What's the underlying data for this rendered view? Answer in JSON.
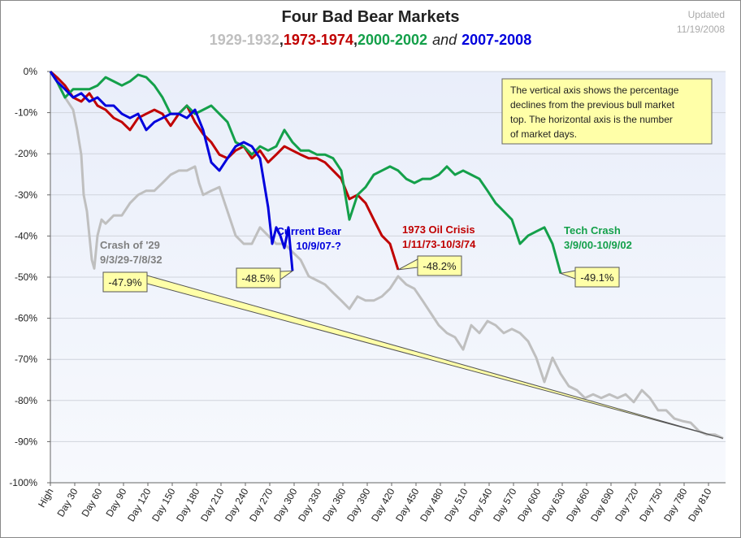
{
  "chart_data": {
    "type": "line",
    "title": "Four Bad Bear Markets",
    "subtitle_separators": [
      ",",
      ",",
      "and"
    ],
    "updated": [
      "Updated",
      "11/19/2008"
    ],
    "note": [
      "The vertical axis shows the percentage",
      "declines from the previous bull market",
      "top. The horizontal axis is the number",
      "of market days."
    ],
    "xlim": [
      0,
      831
    ],
    "ylim": [
      -100,
      0
    ],
    "grid": true,
    "xticks": [
      {
        "value": 0,
        "label": "High"
      },
      {
        "value": 30,
        "label": "Day 30"
      },
      {
        "value": 60,
        "label": "Day 60"
      },
      {
        "value": 90,
        "label": "Day 90"
      },
      {
        "value": 120,
        "label": "Day 120"
      },
      {
        "value": 150,
        "label": "Day 150"
      },
      {
        "value": 180,
        "label": "Day 180"
      },
      {
        "value": 210,
        "label": "Day 210"
      },
      {
        "value": 240,
        "label": "Day 240"
      },
      {
        "value": 270,
        "label": "Day 270"
      },
      {
        "value": 300,
        "label": "Day 300"
      },
      {
        "value": 330,
        "label": "Day 330"
      },
      {
        "value": 360,
        "label": "Day 360"
      },
      {
        "value": 390,
        "label": "Day 390"
      },
      {
        "value": 420,
        "label": "Day 420"
      },
      {
        "value": 450,
        "label": "Day 450"
      },
      {
        "value": 480,
        "label": "Day 480"
      },
      {
        "value": 510,
        "label": "Day 510"
      },
      {
        "value": 540,
        "label": "Day 540"
      },
      {
        "value": 570,
        "label": "Day 570"
      },
      {
        "value": 600,
        "label": "Day 600"
      },
      {
        "value": 630,
        "label": "Day 630"
      },
      {
        "value": 660,
        "label": "Day 660"
      },
      {
        "value": 690,
        "label": "Day 690"
      },
      {
        "value": 720,
        "label": "Day 720"
      },
      {
        "value": 750,
        "label": "Day 750"
      },
      {
        "value": 780,
        "label": "Day 780"
      },
      {
        "value": 810,
        "label": "Day 810"
      }
    ],
    "yticks": [
      {
        "value": 0,
        "label": "0%"
      },
      {
        "value": -10,
        "label": "-10%"
      },
      {
        "value": -20,
        "label": "-20%"
      },
      {
        "value": -30,
        "label": "-30%"
      },
      {
        "value": -40,
        "label": "-40%"
      },
      {
        "value": -50,
        "label": "-50%"
      },
      {
        "value": -60,
        "label": "-60%"
      },
      {
        "value": -70,
        "label": "-70%"
      },
      {
        "value": -80,
        "label": "-80%"
      },
      {
        "value": -90,
        "label": "-90%"
      },
      {
        "value": -100,
        "label": "-100%"
      }
    ],
    "series": [
      {
        "name": "1929-1932",
        "color": "#bfbfbf",
        "label": [
          "Crash of '29",
          "9/3/29-7/8/32"
        ],
        "label_color": "#808080",
        "callout": "-47.9%",
        "x": [
          0,
          8,
          18,
          28,
          33,
          38,
          41,
          45,
          48,
          51,
          54,
          58,
          63,
          68,
          78,
          88,
          98,
          108,
          118,
          128,
          138,
          148,
          158,
          168,
          178,
          183,
          188,
          198,
          208,
          218,
          228,
          238,
          248,
          258,
          268,
          278,
          288,
          298,
          308,
          318,
          328,
          338,
          348,
          358,
          368,
          378,
          388,
          398,
          408,
          418,
          428,
          438,
          448,
          458,
          468,
          478,
          488,
          498,
          508,
          518,
          528,
          538,
          548,
          558,
          568,
          578,
          588,
          598,
          608,
          618,
          628,
          638,
          648,
          658,
          668,
          678,
          688,
          698,
          708,
          718,
          728,
          738,
          748,
          758,
          768,
          778,
          788,
          798,
          808,
          818,
          828
        ],
        "values": [
          0,
          -2.4,
          -6.3,
          -9.3,
          -14.2,
          -20.2,
          -30.0,
          -34.0,
          -39.9,
          -45.8,
          -47.9,
          -39.9,
          -36.0,
          -37.0,
          -35.0,
          -35.0,
          -32.0,
          -30.0,
          -29.0,
          -29.0,
          -27.1,
          -25.1,
          -24.1,
          -24.1,
          -23.1,
          -27.1,
          -30.0,
          -29.0,
          -28.1,
          -34.0,
          -39.9,
          -41.9,
          -41.9,
          -37.9,
          -39.9,
          -41.9,
          -41.9,
          -43.9,
          -45.8,
          -49.8,
          -50.8,
          -51.8,
          -53.8,
          -55.7,
          -57.7,
          -54.7,
          -55.7,
          -55.7,
          -54.7,
          -52.8,
          -49.8,
          -51.8,
          -52.8,
          -55.7,
          -58.7,
          -61.7,
          -63.6,
          -64.6,
          -67.6,
          -61.7,
          -63.6,
          -60.7,
          -61.7,
          -63.6,
          -62.6,
          -63.6,
          -65.6,
          -69.6,
          -75.5,
          -69.6,
          -73.5,
          -76.5,
          -77.5,
          -79.4,
          -78.5,
          -79.4,
          -78.5,
          -79.4,
          -78.5,
          -80.4,
          -77.5,
          -79.4,
          -82.4,
          -82.4,
          -84.4,
          -85.0,
          -85.4,
          -87.4,
          -88.3,
          -88.3,
          -89.2
        ]
      },
      {
        "name": "1973-1974",
        "color": "#c00000",
        "label": [
          "1973 Oil Crisis",
          "1/11/73-10/3/74"
        ],
        "label_color": "#c00000",
        "callout": "-48.2%",
        "x": [
          0,
          8,
          18,
          28,
          38,
          48,
          58,
          68,
          78,
          88,
          98,
          108,
          118,
          128,
          138,
          148,
          158,
          168,
          178,
          188,
          198,
          208,
          218,
          228,
          238,
          248,
          258,
          268,
          278,
          288,
          298,
          308,
          318,
          328,
          338,
          348,
          358,
          368,
          378,
          388,
          398,
          408,
          418,
          428
        ],
        "values": [
          0,
          -1.4,
          -3.4,
          -6.3,
          -7.3,
          -5.3,
          -8.3,
          -9.3,
          -11.3,
          -12.3,
          -14.2,
          -11.3,
          -10.3,
          -9.3,
          -10.3,
          -13.2,
          -10.3,
          -8.3,
          -12.3,
          -15.2,
          -17.2,
          -20.2,
          -21.1,
          -19.2,
          -18.2,
          -21.1,
          -19.2,
          -22.1,
          -20.2,
          -18.2,
          -19.2,
          -20.2,
          -21.1,
          -21.1,
          -22.1,
          -24.1,
          -26.1,
          -31.0,
          -30.0,
          -32.0,
          -36.0,
          -39.9,
          -41.9,
          -48.2
        ]
      },
      {
        "name": "2000-2002",
        "color": "#14a04a",
        "label": [
          "Tech Crash",
          "3/9/00-10/9/02"
        ],
        "label_color": "#14a04a",
        "callout": "-49.1%",
        "x": [
          0,
          8,
          18,
          28,
          38,
          48,
          58,
          68,
          78,
          88,
          98,
          108,
          118,
          128,
          138,
          148,
          158,
          168,
          178,
          188,
          198,
          208,
          218,
          228,
          238,
          248,
          258,
          268,
          278,
          288,
          298,
          308,
          318,
          328,
          338,
          348,
          358,
          368,
          378,
          388,
          398,
          408,
          418,
          428,
          438,
          448,
          458,
          468,
          478,
          488,
          498,
          508,
          518,
          528,
          538,
          548,
          558,
          568,
          578,
          588,
          598,
          608,
          618,
          628
        ],
        "values": [
          0,
          -2.4,
          -6.3,
          -4.3,
          -4.3,
          -4.3,
          -3.4,
          -1.4,
          -2.4,
          -3.4,
          -2.4,
          -0.8,
          -1.4,
          -3.4,
          -6.3,
          -10.3,
          -10.3,
          -8.3,
          -10.3,
          -9.3,
          -8.3,
          -10.3,
          -12.3,
          -17.2,
          -18.2,
          -20.2,
          -18.2,
          -19.2,
          -18.2,
          -14.2,
          -17.2,
          -19.2,
          -19.2,
          -20.2,
          -20.2,
          -21.1,
          -24.1,
          -36.0,
          -30.0,
          -28.1,
          -25.1,
          -24.1,
          -23.1,
          -24.1,
          -26.1,
          -27.1,
          -26.1,
          -26.1,
          -25.1,
          -23.1,
          -25.1,
          -24.1,
          -25.1,
          -26.1,
          -29.0,
          -32.0,
          -34.0,
          -36.0,
          -41.9,
          -39.9,
          -38.9,
          -37.9,
          -41.9,
          -49.1
        ]
      },
      {
        "name": "2007-2008",
        "color": "#0000dd",
        "label": [
          "Current Bear",
          "10/9/07-?"
        ],
        "label_color": "#0000dd",
        "callout": "-48.5%",
        "x": [
          0,
          8,
          18,
          28,
          38,
          48,
          58,
          68,
          78,
          88,
          98,
          108,
          118,
          128,
          138,
          148,
          158,
          168,
          178,
          188,
          198,
          208,
          218,
          228,
          238,
          248,
          258,
          268,
          273,
          278,
          283,
          288,
          293,
          298
        ],
        "values": [
          0,
          -2.4,
          -4.3,
          -6.3,
          -5.3,
          -7.3,
          -6.3,
          -8.3,
          -8.3,
          -10.3,
          -11.3,
          -10.3,
          -14.2,
          -12.3,
          -11.3,
          -10.3,
          -10.3,
          -11.3,
          -9.3,
          -14.2,
          -22.1,
          -24.1,
          -21.1,
          -18.2,
          -17.2,
          -18.2,
          -21.1,
          -33.0,
          -41.9,
          -37.9,
          -39.9,
          -42.9,
          -37.9,
          -48.5
        ]
      }
    ]
  }
}
